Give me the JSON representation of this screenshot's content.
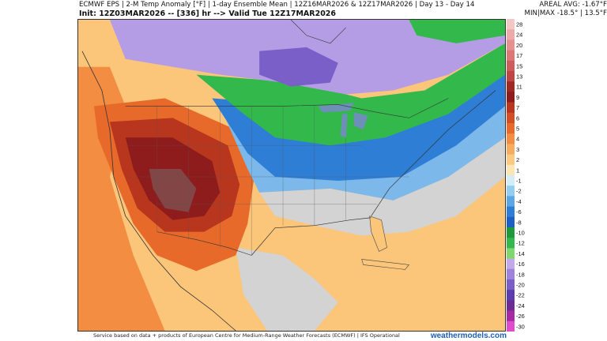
{
  "header": {
    "line1": "ECMWF EPS | 2-M Temp Anomaly [°F] | 1-day Ensemble Mean | 12Z16MAR2026 & 12Z17MAR2026 | Day 13 - Day 14",
    "line2": "Init: 12Z03MAR2026 -- [336] hr --> Valid Tue 12Z17MAR2026",
    "areal_avg": "AREAL AVG: -1.67°F",
    "min_max": "MIN|MAX -18.5° | 13.5°F"
  },
  "footer": {
    "credit": "Service based on data + products of European Centre for Medium-Range Weather Forecasts (ECMWF) | IFS Operational",
    "brand": "weathermodels.com"
  },
  "legend": {
    "items": [
      {
        "label": "28",
        "color": "#f4c7c7"
      },
      {
        "label": "24",
        "color": "#eeaaaa"
      },
      {
        "label": "20",
        "color": "#e79090"
      },
      {
        "label": "17",
        "color": "#dd7777"
      },
      {
        "label": "15",
        "color": "#cf5c5c"
      },
      {
        "label": "13",
        "color": "#c04646"
      },
      {
        "label": "11",
        "color": "#a02a22"
      },
      {
        "label": "9",
        "color": "#8e1c1c"
      },
      {
        "label": "7",
        "color": "#b8361e"
      },
      {
        "label": "6",
        "color": "#d24e24"
      },
      {
        "label": "5",
        "color": "#e76a2a"
      },
      {
        "label": "4",
        "color": "#f28d42"
      },
      {
        "label": "3",
        "color": "#f7ac5f"
      },
      {
        "label": "2",
        "color": "#fbca82"
      },
      {
        "label": "1",
        "color": "#fde6b4"
      },
      {
        "label": "-1",
        "color": "#d4eef9"
      },
      {
        "label": "-2",
        "color": "#93cdef"
      },
      {
        "label": "-4",
        "color": "#5aa7e3"
      },
      {
        "label": "-6",
        "color": "#2f7ed6"
      },
      {
        "label": "-8",
        "color": "#1e5fc4"
      },
      {
        "label": "-10",
        "color": "#1e9a3c"
      },
      {
        "label": "-12",
        "color": "#33b84b"
      },
      {
        "label": "-14",
        "color": "#7fd86e"
      },
      {
        "label": "-16",
        "color": "#c2a9ea"
      },
      {
        "label": "-18",
        "color": "#9f82dc"
      },
      {
        "label": "-20",
        "color": "#7a5fc8"
      },
      {
        "label": "-22",
        "color": "#5b3fb0"
      },
      {
        "label": "-24",
        "color": "#6b2c96"
      },
      {
        "label": "-26",
        "color": "#a52ba3"
      },
      {
        "label": "-30",
        "color": "#e04dcc"
      }
    ]
  },
  "palette": {
    "very_hot": "#8e1c1c",
    "hot": "#c84a2a",
    "warm": "#f28d42",
    "mild": "#fbc57a",
    "neutral": "#d3d3d3",
    "cool": "#7db8ea",
    "cold": "#2f7ed6",
    "colder": "#33b84b",
    "coldest": "#b59de6",
    "extreme": "#5b3fb0",
    "lake": "#6e8fb8"
  }
}
